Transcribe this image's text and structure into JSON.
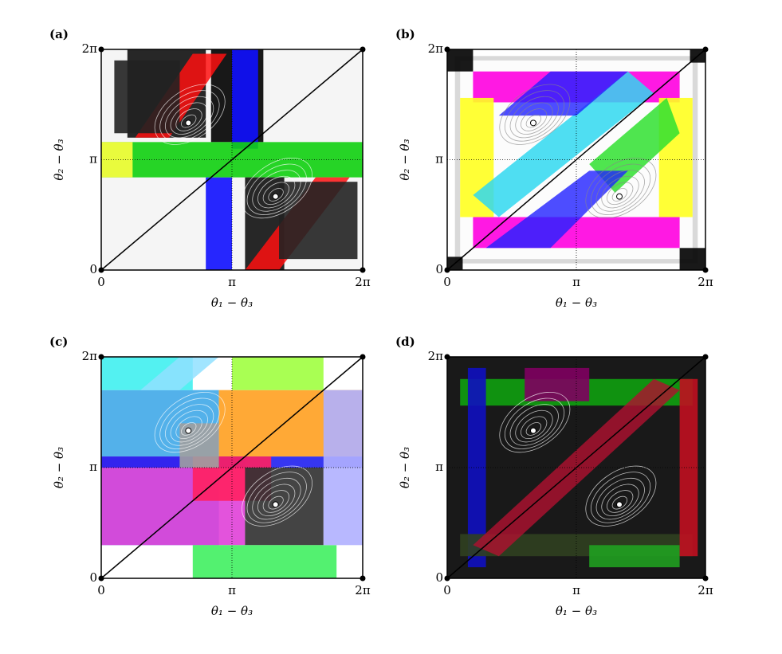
{
  "chart_data": [
    {
      "type": "phase-portrait",
      "panel": "(a)",
      "x_label": "θ₁ − θ₃",
      "y_label": "θ₂ − θ₃",
      "xlim": [
        0,
        6.2832
      ],
      "ylim": [
        0,
        6.2832
      ],
      "xticks": [
        0,
        {
          "value": 3.1416,
          "label": "π"
        },
        {
          "value": 6.2832,
          "label": "2π"
        }
      ],
      "yticks": [
        0,
        {
          "value": 3.1416,
          "label": "π"
        },
        {
          "value": 6.2832,
          "label": "2π"
        }
      ],
      "points": {
        "x": [
          2.094,
          4.189
        ],
        "y": [
          4.189,
          2.094
        ],
        "color": "#ffffff"
      }
    },
    {
      "type": "phase-portrait",
      "panel": "(b)",
      "x_label": "θ₁ − θ₃",
      "y_label": "θ₂ − θ₃",
      "xlim": [
        0,
        6.2832
      ],
      "ylim": [
        0,
        6.2832
      ],
      "xticks": [
        0,
        {
          "value": 3.1416,
          "label": "π"
        },
        {
          "value": 6.2832,
          "label": "2π"
        }
      ],
      "yticks": [
        0,
        {
          "value": 3.1416,
          "label": "π"
        },
        {
          "value": 6.2832,
          "label": "2π"
        }
      ],
      "points": {
        "x": [
          2.094,
          4.189
        ],
        "y": [
          4.189,
          2.094
        ],
        "color": "#ffffff"
      }
    },
    {
      "type": "phase-portrait",
      "panel": "(c)",
      "x_label": "θ₁ − θ₃",
      "y_label": "θ₂ − θ₃",
      "xlim": [
        0,
        6.2832
      ],
      "ylim": [
        0,
        6.2832
      ],
      "xticks": [
        0,
        {
          "value": 3.1416,
          "label": "π"
        },
        {
          "value": 6.2832,
          "label": "2π"
        }
      ],
      "yticks": [
        0,
        {
          "value": 3.1416,
          "label": "π"
        },
        {
          "value": 6.2832,
          "label": "2π"
        }
      ],
      "points": {
        "x": [
          2.094,
          4.189
        ],
        "y": [
          4.189,
          2.094
        ],
        "color": "#ffffff"
      }
    },
    {
      "type": "phase-portrait",
      "panel": "(d)",
      "x_label": "θ₁ − θ₃",
      "y_label": "θ₂ − θ₃",
      "xlim": [
        0,
        6.2832
      ],
      "ylim": [
        0,
        6.2832
      ],
      "xticks": [
        0,
        {
          "value": 3.1416,
          "label": "π"
        },
        {
          "value": 6.2832,
          "label": "2π"
        }
      ],
      "yticks": [
        0,
        {
          "value": 3.1416,
          "label": "π"
        },
        {
          "value": 6.2832,
          "label": "2π"
        }
      ],
      "points": {
        "x": [
          2.094,
          4.189
        ],
        "y": [
          4.189,
          2.094
        ],
        "color": "#ffffff"
      }
    }
  ]
}
